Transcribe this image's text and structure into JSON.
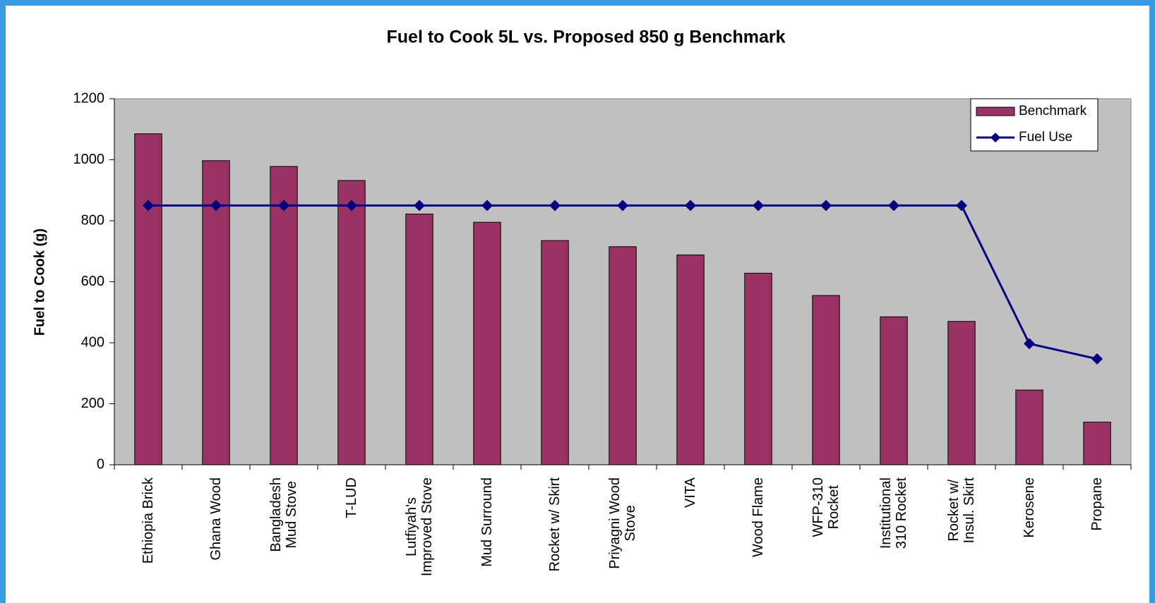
{
  "chart_data": {
    "type": "bar_line",
    "title": "Fuel to Cook 5L vs. Proposed 850 g Benchmark",
    "y_label": "Fuel to Cook (g)",
    "categories": [
      "Ethiopia Brick",
      "Ghana Wood",
      "Bangladesh\nMud Stove",
      "T-LUD",
      "Lutfiyah's\nImproved Stove",
      "Mud Surround",
      "Rocket w/ Skirt",
      "Priyagni Wood\nStove",
      "VITA",
      "Wood Flame",
      "WFP-310\nRocket",
      "Institutional\n310 Rocket",
      "Rocket w/\nInsul. Skirt",
      "Kerosene",
      "Propane"
    ],
    "series": [
      {
        "name": "Benchmark",
        "type": "bar",
        "color": "#993366",
        "values": [
          1085,
          997,
          978,
          932,
          822,
          795,
          735,
          715,
          688,
          628,
          555,
          485,
          470,
          245,
          140
        ]
      },
      {
        "name": "Fuel Use",
        "type": "line",
        "color": "#000080",
        "values": [
          850,
          850,
          850,
          850,
          850,
          850,
          850,
          850,
          850,
          850,
          850,
          850,
          850,
          397,
          347
        ]
      }
    ],
    "ylim": [
      0,
      1200
    ],
    "yticks": [
      0,
      200,
      400,
      600,
      800,
      1000,
      1200
    ],
    "legend": "top-right",
    "plot_background": "#c0c0c0"
  }
}
